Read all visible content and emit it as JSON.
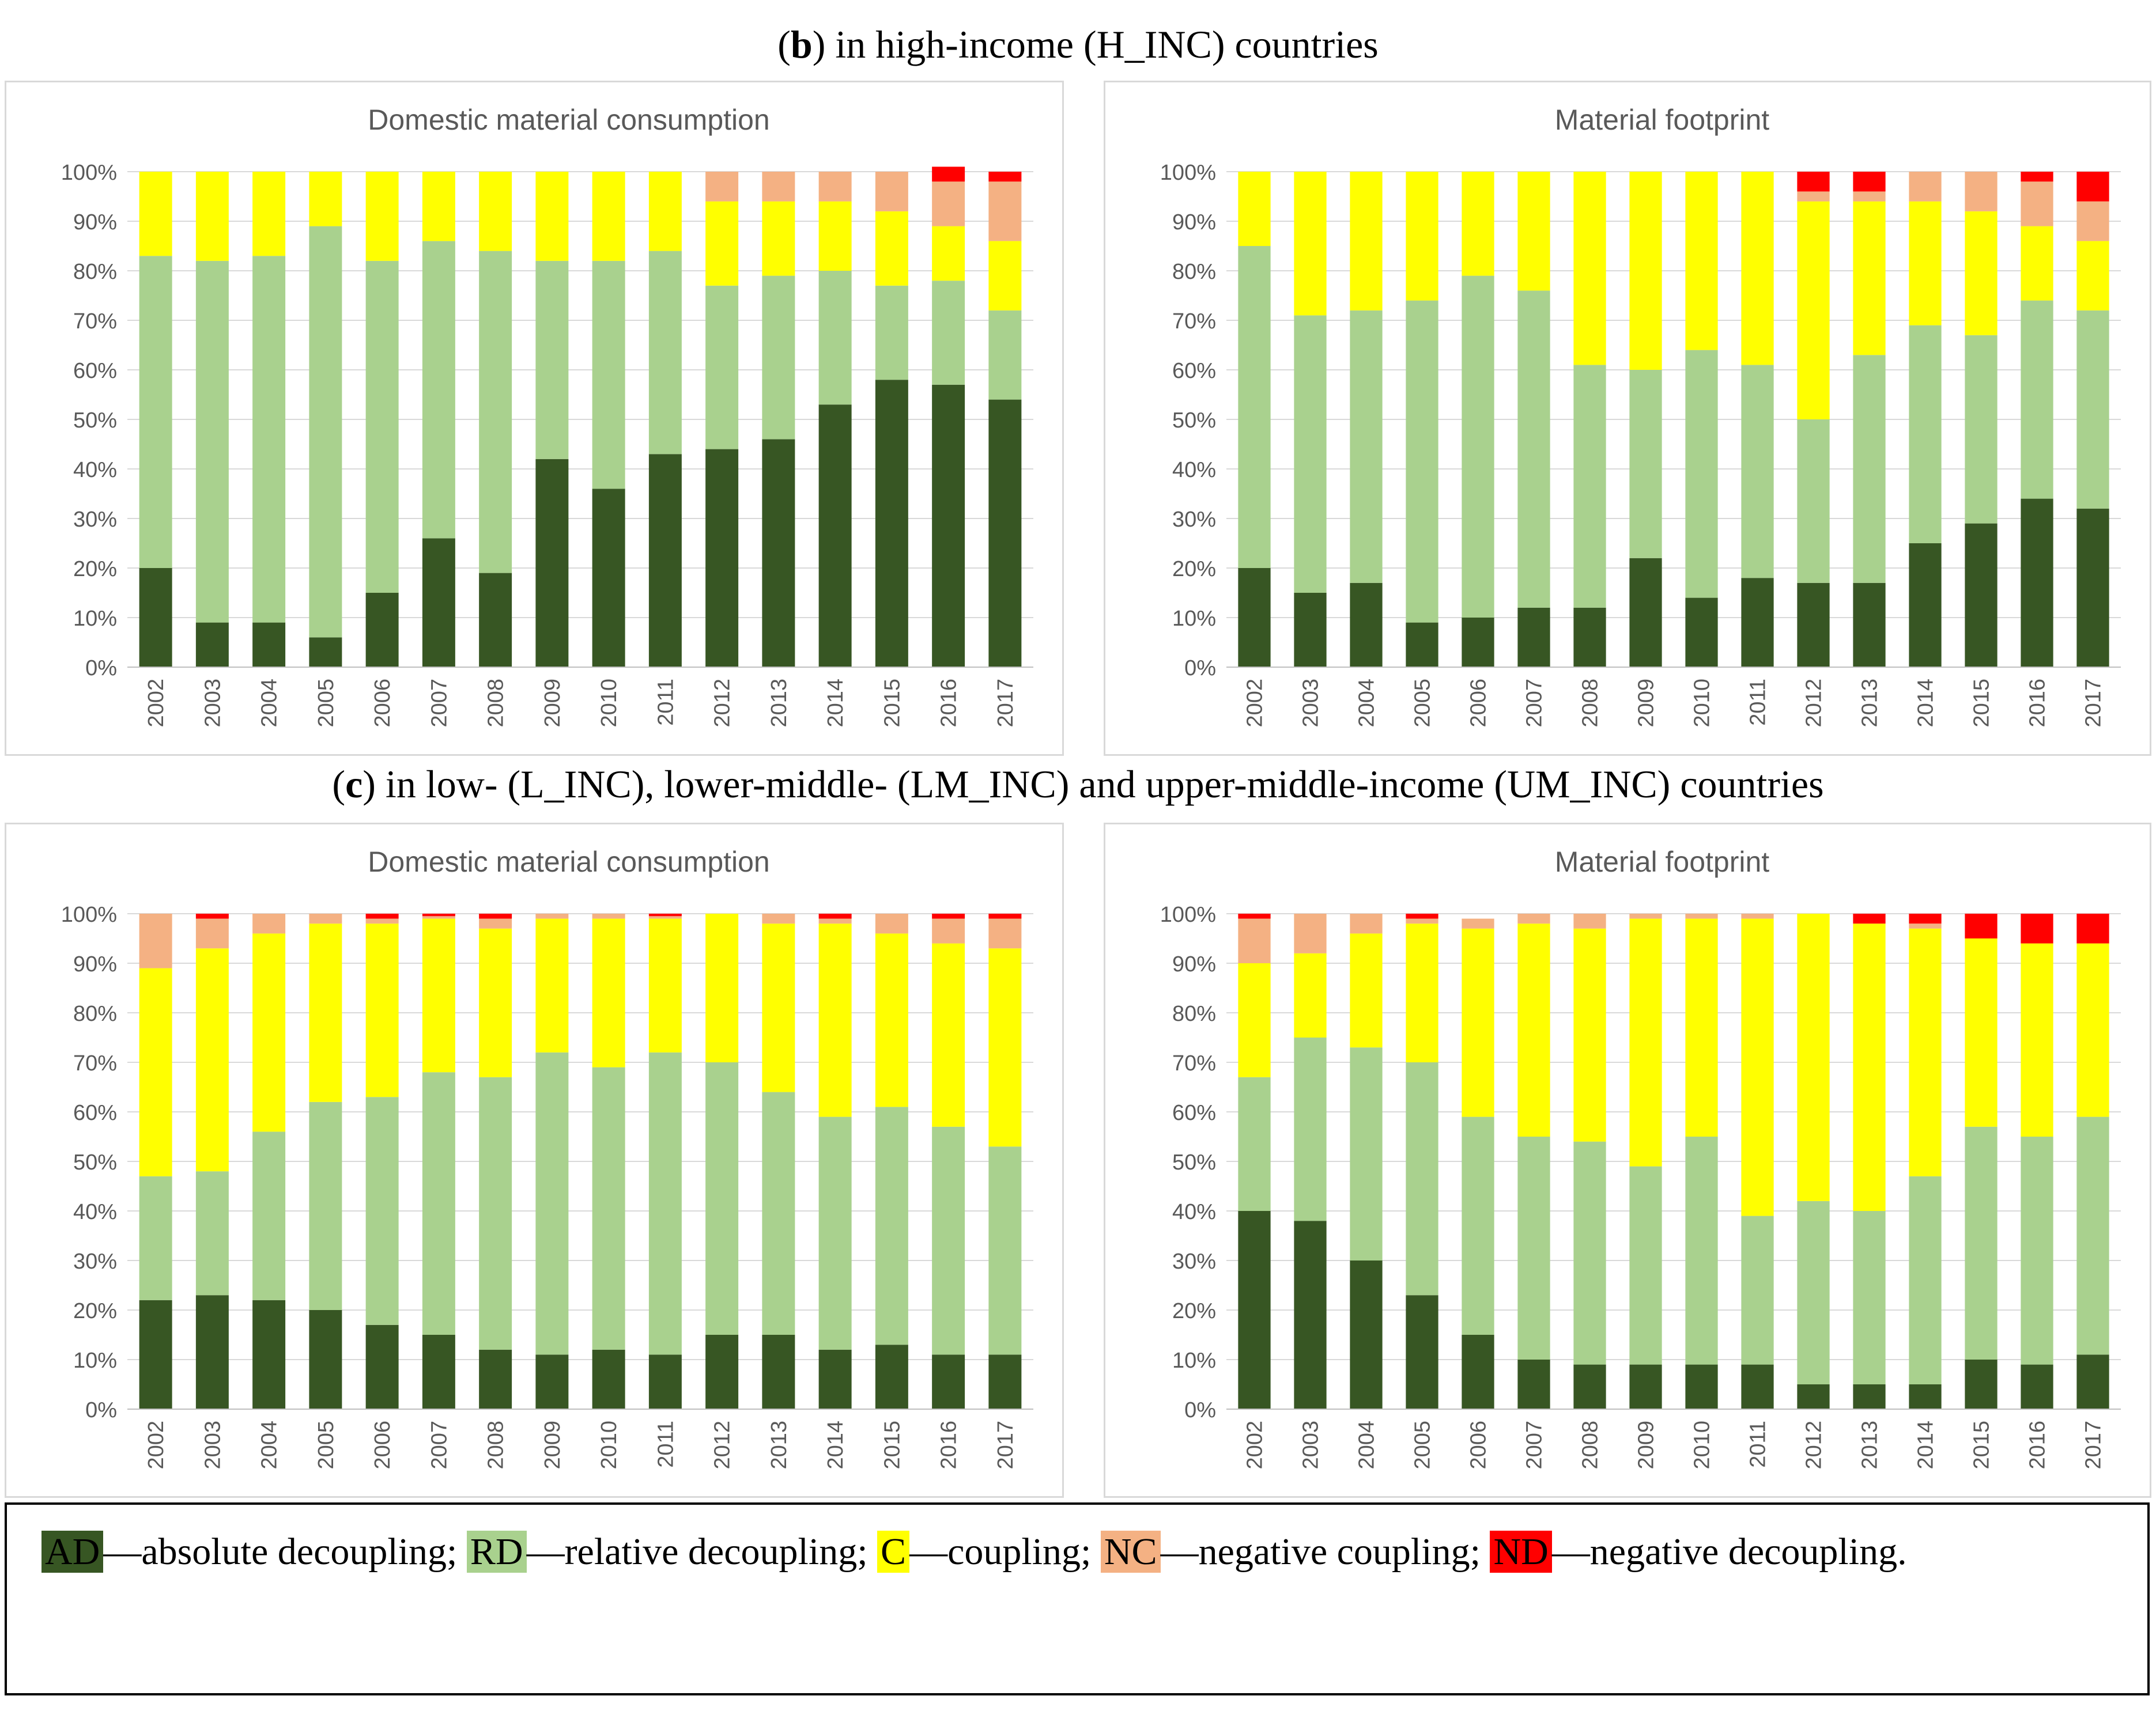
{
  "sections": [
    {
      "label_bold": "b",
      "text": " in high-income (H_INC) countries"
    },
    {
      "label_bold": "c",
      "text": " in low- (L_INC), lower-middle- (LM_INC) and upper-middle-income (UM_INC) countries"
    }
  ],
  "colors": {
    "AD": "#375623",
    "RD": "#a9d18e",
    "C": "#ffff00",
    "NC": "#f4b183",
    "ND": "#ff0000",
    "axis_text": "#595959",
    "gridline": "#d9d9d9"
  },
  "legend": [
    {
      "code": "AD",
      "desc": "absolute decoupling;"
    },
    {
      "code": "RD",
      "desc": "relative decoupling;"
    },
    {
      "code": "C",
      "desc": "coupling;"
    },
    {
      "code": "NC",
      "desc": "negative coupling;"
    },
    {
      "code": "ND",
      "desc": "negative decoupling."
    }
  ],
  "chart_data": [
    {
      "type": "bar",
      "stacked": true,
      "panel": "b-left",
      "title": "Domestic material consumption",
      "categories": [
        "2002",
        "2003",
        "2004",
        "2005",
        "2006",
        "2007",
        "2008",
        "2009",
        "2010",
        "2011",
        "2012",
        "2013",
        "2014",
        "2015",
        "2016",
        "2017"
      ],
      "ylim": [
        0,
        100
      ],
      "yticks": [
        "0%",
        "10%",
        "20%",
        "30%",
        "40%",
        "50%",
        "60%",
        "70%",
        "80%",
        "90%",
        "100%"
      ],
      "series": [
        {
          "name": "AD",
          "values": [
            20,
            9,
            9,
            6,
            15,
            26,
            19,
            42,
            36,
            43,
            44,
            46,
            53,
            58,
            57,
            54
          ]
        },
        {
          "name": "RD",
          "values": [
            63,
            73,
            74,
            83,
            67,
            60,
            65,
            40,
            46,
            41,
            33,
            33,
            27,
            19,
            21,
            18
          ]
        },
        {
          "name": "C",
          "values": [
            17,
            18,
            17,
            11,
            18,
            14,
            16,
            18,
            18,
            16,
            17,
            15,
            14,
            15,
            11,
            14
          ]
        },
        {
          "name": "NC",
          "values": [
            0,
            0,
            0,
            0,
            0,
            0,
            0,
            0,
            0,
            0,
            6,
            6,
            6,
            8,
            9,
            12
          ]
        },
        {
          "name": "ND",
          "values": [
            0,
            0,
            0,
            0,
            0,
            0,
            0,
            0,
            0,
            0,
            0,
            0,
            0,
            0,
            3,
            2
          ]
        }
      ]
    },
    {
      "type": "bar",
      "stacked": true,
      "panel": "b-right",
      "title": "Material footprint",
      "categories": [
        "2002",
        "2003",
        "2004",
        "2005",
        "2006",
        "2007",
        "2008",
        "2009",
        "2010",
        "2011",
        "2012",
        "2013",
        "2014",
        "2015",
        "2016",
        "2017"
      ],
      "ylim": [
        0,
        100
      ],
      "yticks": [
        "0%",
        "10%",
        "20%",
        "30%",
        "40%",
        "50%",
        "60%",
        "70%",
        "80%",
        "90%",
        "100%"
      ],
      "series": [
        {
          "name": "AD",
          "values": [
            20,
            15,
            17,
            9,
            10,
            12,
            12,
            22,
            14,
            18,
            17,
            17,
            25,
            29,
            34,
            32
          ]
        },
        {
          "name": "RD",
          "values": [
            65,
            56,
            55,
            65,
            69,
            64,
            49,
            38,
            50,
            43,
            33,
            46,
            44,
            38,
            40,
            40
          ]
        },
        {
          "name": "C",
          "values": [
            15,
            29,
            28,
            26,
            21,
            24,
            39,
            40,
            36,
            39,
            44,
            31,
            25,
            25,
            15,
            14
          ]
        },
        {
          "name": "NC",
          "values": [
            0,
            0,
            0,
            0,
            0,
            0,
            0,
            0,
            0,
            0,
            2,
            2,
            6,
            8,
            9,
            8
          ]
        },
        {
          "name": "ND",
          "values": [
            0,
            0,
            0,
            0,
            0,
            0,
            0,
            0,
            0,
            0,
            4,
            4,
            0,
            0,
            2,
            6
          ]
        }
      ]
    },
    {
      "type": "bar",
      "stacked": true,
      "panel": "c-left",
      "title": "Domestic material consumption",
      "categories": [
        "2002",
        "2003",
        "2004",
        "2005",
        "2006",
        "2007",
        "2008",
        "2009",
        "2010",
        "2011",
        "2012",
        "2013",
        "2014",
        "2015",
        "2016",
        "2017"
      ],
      "ylim": [
        0,
        100
      ],
      "yticks": [
        "0%",
        "10%",
        "20%",
        "30%",
        "40%",
        "50%",
        "60%",
        "70%",
        "80%",
        "90%",
        "100%"
      ],
      "series": [
        {
          "name": "AD",
          "values": [
            22,
            23,
            22,
            20,
            17,
            15,
            12,
            11,
            12,
            11,
            15,
            15,
            12,
            13,
            11,
            11
          ]
        },
        {
          "name": "RD",
          "values": [
            25,
            25,
            34,
            42,
            46,
            53,
            55,
            61,
            57,
            61,
            55,
            49,
            47,
            48,
            46,
            42
          ]
        },
        {
          "name": "C",
          "values": [
            42,
            45,
            40,
            36,
            35,
            31,
            30,
            27,
            30,
            27,
            30,
            34,
            39,
            35,
            37,
            40
          ]
        },
        {
          "name": "NC",
          "values": [
            11,
            6,
            4,
            2,
            1,
            0.5,
            2,
            1,
            1,
            0.5,
            0,
            2,
            1,
            4,
            5,
            6
          ]
        },
        {
          "name": "ND",
          "values": [
            0,
            1,
            0,
            0,
            1,
            0.5,
            1,
            0,
            0,
            0.5,
            0,
            0,
            1,
            0,
            1,
            1
          ]
        }
      ]
    },
    {
      "type": "bar",
      "stacked": true,
      "panel": "c-right",
      "title": "Material footprint",
      "categories": [
        "2002",
        "2003",
        "2004",
        "2005",
        "2006",
        "2007",
        "2008",
        "2009",
        "2010",
        "2011",
        "2012",
        "2013",
        "2014",
        "2015",
        "2016",
        "2017"
      ],
      "ylim": [
        0,
        100
      ],
      "yticks": [
        "0%",
        "10%",
        "20%",
        "30%",
        "40%",
        "50%",
        "60%",
        "70%",
        "80%",
        "90%",
        "100%"
      ],
      "series": [
        {
          "name": "AD",
          "values": [
            40,
            38,
            30,
            23,
            15,
            10,
            9,
            9,
            9,
            9,
            5,
            5,
            5,
            10,
            9,
            11
          ]
        },
        {
          "name": "RD",
          "values": [
            27,
            37,
            43,
            47,
            44,
            45,
            45,
            40,
            46,
            30,
            37,
            35,
            42,
            47,
            46,
            48
          ]
        },
        {
          "name": "C",
          "values": [
            23,
            17,
            23,
            28,
            38,
            43,
            43,
            50,
            44,
            60,
            58,
            58,
            50,
            38,
            39,
            35
          ]
        },
        {
          "name": "NC",
          "values": [
            9,
            8,
            4,
            1,
            2,
            2,
            3,
            1,
            1,
            1,
            0,
            0,
            1,
            0,
            0,
            0
          ]
        },
        {
          "name": "ND",
          "values": [
            1,
            0,
            0,
            1,
            0,
            0,
            0,
            0,
            0,
            0,
            0,
            2,
            2,
            5,
            6,
            6
          ]
        }
      ]
    }
  ]
}
